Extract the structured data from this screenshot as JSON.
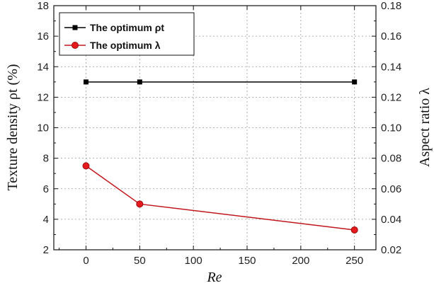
{
  "chart_data": {
    "type": "line",
    "x": [
      0,
      50,
      250
    ],
    "xlabel": "Re",
    "xlim": [
      -30,
      270
    ],
    "xticks": [
      0,
      50,
      100,
      150,
      200,
      250
    ],
    "ylabel_left": "Texture density ρt (%)",
    "ylim_left": [
      2,
      18
    ],
    "yticks_left": [
      2,
      4,
      6,
      8,
      10,
      12,
      14,
      16,
      18
    ],
    "ylabel_right": "Aspect ratio λ",
    "ylim_right": [
      0.02,
      0.18
    ],
    "yticks_right": [
      "0.02",
      "0.04",
      "0.06",
      "0.08",
      "0.10",
      "0.12",
      "0.14",
      "0.16",
      "0.18"
    ],
    "grid": true,
    "legend_position": "top-left",
    "series": [
      {
        "name": "The optimum ρt",
        "axis": "left",
        "marker": "square",
        "color": "#000000",
        "values": [
          13,
          13,
          13
        ]
      },
      {
        "name": "The optimum λ",
        "axis": "right",
        "marker": "circle",
        "color": "#e41a1c",
        "values": [
          0.075,
          0.05,
          0.033
        ]
      }
    ]
  }
}
